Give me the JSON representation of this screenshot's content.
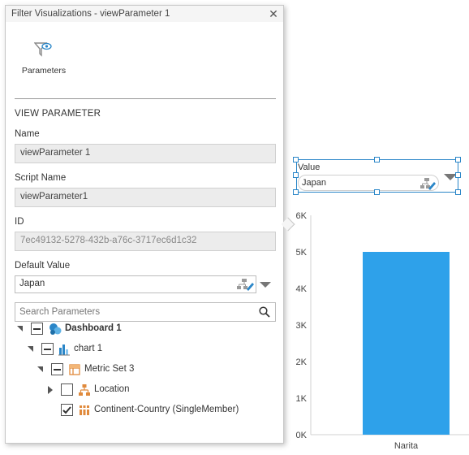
{
  "dialog": {
    "title": "Filter Visualizations - viewParameter 1",
    "close_symbol": "✕",
    "toolbar": {
      "parameters_label": "Parameters"
    },
    "section_title": "VIEW PARAMETER",
    "name": {
      "label": "Name",
      "value": "viewParameter 1"
    },
    "script_name": {
      "label": "Script Name",
      "value": "viewParameter1"
    },
    "id": {
      "label": "ID",
      "value": "7ec49132-5278-432b-a76c-3717ec6d1c32"
    },
    "default_value": {
      "label": "Default Value",
      "value": "Japan"
    },
    "search": {
      "placeholder": "Search Parameters"
    },
    "tree": [
      {
        "label": "Dashboard 1",
        "state": "partial",
        "icon": "dashboard-icon",
        "expanded": true
      },
      {
        "label": "chart 1",
        "state": "partial",
        "icon": "bar-chart-icon",
        "expanded": true
      },
      {
        "label": "Metric Set 3",
        "state": "partial",
        "icon": "metric-set-icon",
        "expanded": true
      },
      {
        "label": "Location",
        "state": "unchecked",
        "icon": "hierarchy-icon",
        "expanded": false
      },
      {
        "label": "Continent-Country (SingleMember)",
        "state": "checked",
        "icon": "member-icon"
      }
    ]
  },
  "value_widget": {
    "label": "Value",
    "value": "Japan"
  },
  "chart_data": {
    "type": "bar",
    "categories": [
      "Narita"
    ],
    "values": [
      5000
    ],
    "ylim": [
      0,
      6000
    ],
    "yticks": [
      "0K",
      "1K",
      "2K",
      "3K",
      "4K",
      "5K",
      "6K"
    ],
    "bar_color": "#2ea1ea",
    "grid": false
  },
  "colors": {
    "accent": "#2a86c8",
    "bar": "#2ea1ea"
  }
}
